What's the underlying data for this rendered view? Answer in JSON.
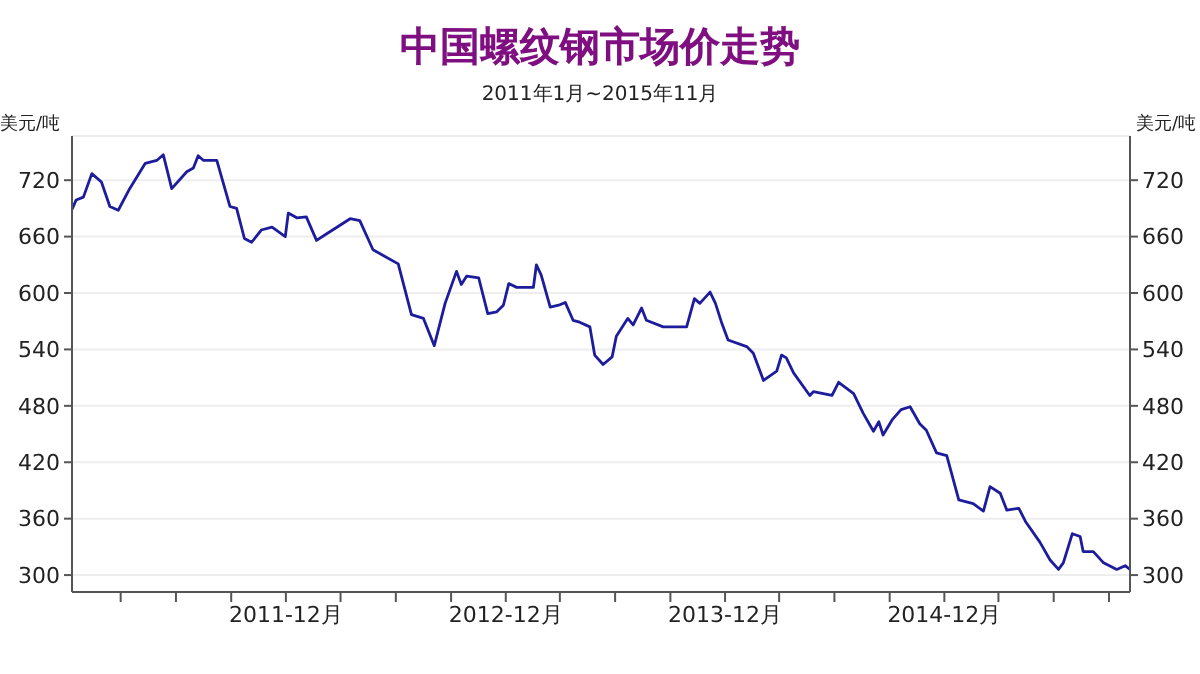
{
  "chart_data": {
    "type": "line",
    "title": "中国螺纹钢市场价走势",
    "subtitle": "2011年1月~2015年11月",
    "ylabel": "美元/吨",
    "y2label": "美元/吨",
    "x": [
      "2010-12-10",
      "2010-12-17",
      "2010-12-29",
      "2011-01-12",
      "2011-01-28",
      "2011-02-11",
      "2011-02-25",
      "2011-03-16",
      "2011-04-11",
      "2011-04-30",
      "2011-05-11",
      "2011-05-25",
      "2011-06-19",
      "2011-06-30",
      "2011-07-08",
      "2011-07-17",
      "2011-08-08",
      "2011-08-30",
      "2011-09-10",
      "2011-09-23",
      "2011-10-05",
      "2011-10-21",
      "2011-11-08",
      "2011-11-30",
      "2011-12-05",
      "2011-12-19",
      "2012-01-04",
      "2012-01-21",
      "2012-02-07",
      "2012-03-17",
      "2012-04-02",
      "2012-04-24",
      "2012-05-11",
      "2012-06-05",
      "2012-06-27",
      "2012-07-17",
      "2012-08-04",
      "2012-08-22",
      "2012-09-10",
      "2012-09-18",
      "2012-09-27",
      "2012-10-17",
      "2012-11-01",
      "2012-11-16",
      "2012-11-27",
      "2012-12-06",
      "2012-12-19",
      "2013-01-16",
      "2013-01-21",
      "2013-01-29",
      "2013-02-13",
      "2013-02-27",
      "2013-03-10",
      "2013-03-23",
      "2013-04-03",
      "2013-04-20",
      "2013-04-28",
      "2013-05-12",
      "2013-05-27",
      "2013-06-03",
      "2013-06-22",
      "2013-07-01",
      "2013-07-15",
      "2013-07-23",
      "2013-08-20",
      "2013-09-28",
      "2013-10-11",
      "2013-10-20",
      "2013-11-06",
      "2013-11-15",
      "2013-11-25",
      "2013-12-06",
      "2014-01-06",
      "2014-01-17",
      "2014-02-03",
      "2014-02-25",
      "2014-03-05",
      "2014-03-13",
      "2014-03-25",
      "2014-04-21",
      "2014-04-27",
      "2014-05-28",
      "2014-06-08",
      "2014-07-03",
      "2014-07-19",
      "2014-08-05",
      "2014-08-14",
      "2014-08-21",
      "2014-09-05",
      "2014-09-20",
      "2014-10-05",
      "2014-10-21",
      "2014-11-01",
      "2014-11-18",
      "2014-12-05",
      "2014-12-25",
      "2015-01-18",
      "2015-02-04",
      "2015-02-15",
      "2015-03-04",
      "2015-03-15",
      "2015-04-04",
      "2015-04-15",
      "2015-05-09",
      "2015-05-26",
      "2015-06-09",
      "2015-06-17",
      "2015-07-02",
      "2015-07-15",
      "2015-07-20",
      "2015-08-06",
      "2015-08-23",
      "2015-09-14",
      "2015-09-28",
      "2015-10-06"
    ],
    "series": [
      {
        "color": "#1c1c9c",
        "values": [
          689,
          699,
          702,
          727,
          718,
          692,
          688,
          711,
          738,
          741,
          747,
          711,
          729,
          733,
          746,
          741,
          741,
          692,
          690,
          658,
          654,
          667,
          670,
          660,
          685,
          680,
          681,
          656,
          663,
          679,
          677,
          646,
          640,
          631,
          577,
          573,
          544,
          589,
          623,
          609,
          618,
          616,
          578,
          580,
          587,
          610,
          606,
          606,
          630,
          619,
          585,
          587,
          590,
          571,
          569,
          564,
          534,
          524,
          532,
          554,
          573,
          566,
          584,
          571,
          564,
          564,
          594,
          589,
          601,
          589,
          569,
          550,
          543,
          536,
          507,
          517,
          534,
          531,
          515,
          491,
          495,
          491,
          505,
          493,
          472,
          453,
          463,
          449,
          465,
          476,
          479,
          461,
          454,
          430,
          427,
          380,
          376,
          368,
          394,
          387,
          369,
          371,
          357,
          335,
          316,
          306,
          313,
          344,
          341,
          325,
          325,
          313,
          306,
          310,
          306
        ]
      }
    ],
    "xlim": [
      "2010-12-10",
      "2015-10-06"
    ],
    "xticks": [
      {
        "value": "2011-03-01",
        "label": null
      },
      {
        "value": "2011-06-01",
        "label": null
      },
      {
        "value": "2011-09-01",
        "label": null
      },
      {
        "value": "2011-12-01",
        "label": "2011-12月"
      },
      {
        "value": "2012-03-01",
        "label": null
      },
      {
        "value": "2012-06-01",
        "label": null
      },
      {
        "value": "2012-09-01",
        "label": null
      },
      {
        "value": "2012-12-01",
        "label": "2012-12月"
      },
      {
        "value": "2013-03-01",
        "label": null
      },
      {
        "value": "2013-06-01",
        "label": null
      },
      {
        "value": "2013-09-01",
        "label": null
      },
      {
        "value": "2013-12-01",
        "label": "2013-12月"
      },
      {
        "value": "2014-03-01",
        "label": null
      },
      {
        "value": "2014-06-01",
        "label": null
      },
      {
        "value": "2014-09-01",
        "label": null
      },
      {
        "value": "2014-12-01",
        "label": "2014-12月"
      },
      {
        "value": "2015-03-01",
        "label": null
      },
      {
        "value": "2015-06-01",
        "label": null
      },
      {
        "value": "2015-09-01",
        "label": null
      }
    ],
    "ylim": [
      282,
      767
    ],
    "yticks": [
      300,
      360,
      420,
      480,
      540,
      600,
      660,
      720
    ],
    "y2lim": [
      282,
      767
    ],
    "y2ticks": [
      300,
      360,
      420,
      480,
      540,
      600,
      660,
      720
    ],
    "grid": "y",
    "legend": false,
    "marker": "none",
    "line_style": "solid"
  }
}
